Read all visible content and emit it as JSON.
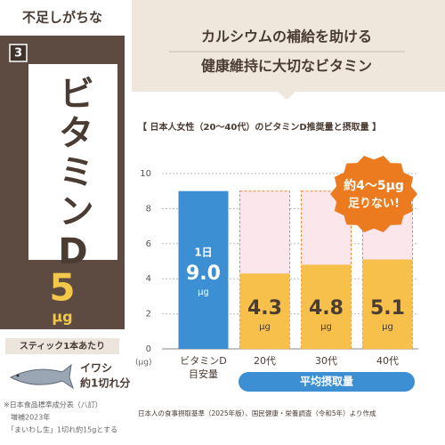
{
  "side": {
    "heading": "不足しがちな",
    "rank": "3",
    "name": "ビタミンD",
    "amount": "5",
    "amount_unit": "μg",
    "serving": "スティック1本あたり",
    "equivalent": [
      "イワシ",
      "約1切れ分"
    ],
    "footnote": [
      "※日本食品標準成分表（八訂）",
      "　増補2023年",
      "　「まいわし生」1切れ約15gとする"
    ]
  },
  "banner": [
    "カルシウムの補給を助ける",
    "健康維持に大切なビタミン"
  ],
  "chart_data": {
    "type": "bar",
    "title": "【 日本人女性（20～40代）のビタミンD推奨量と摂取量 】",
    "categories": [
      [
        "ビタミンD",
        "目安量"
      ],
      [
        "20代"
      ],
      [
        "30代"
      ],
      [
        "40代"
      ]
    ],
    "values": [
      9.0,
      4.3,
      4.8,
      5.1
    ],
    "value_labels": [
      "9.0",
      "4.3",
      "4.8",
      "5.1"
    ],
    "value_unit": "μg",
    "first_bar_prefix": "1日",
    "colors": [
      "#3d8fd4",
      "#f7c04b",
      "#f7c04b",
      "#f7c04b"
    ],
    "shortfall_color": "#fbe6ec",
    "ylim": [
      0,
      10
    ],
    "yticks": [
      0,
      2,
      4,
      6,
      8,
      10
    ],
    "y_unit": "(μg)",
    "grid": true,
    "group_label": "平均摂取量",
    "callout": [
      "約4～5μg",
      "足りない!"
    ],
    "source": "日本人の食事摂取基準（2025年版）、国民健康・栄養調査（令和5年）より作成"
  }
}
